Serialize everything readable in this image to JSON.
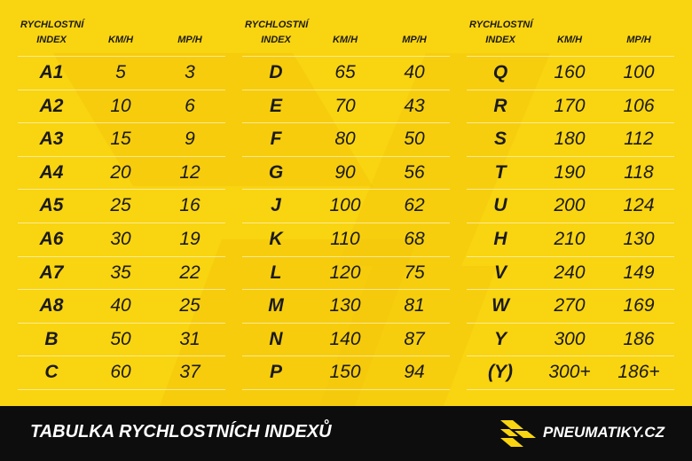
{
  "tables": [
    {
      "index_header": [
        "RYCHLOSTNÍ",
        "INDEX"
      ],
      "km_header": "KM/H",
      "mp_header": "MP/H",
      "rows": [
        [
          "A1",
          5,
          3
        ],
        [
          "A2",
          10,
          6
        ],
        [
          "A3",
          15,
          9
        ],
        [
          "A4",
          20,
          12
        ],
        [
          "A5",
          25,
          16
        ],
        [
          "A6",
          30,
          19
        ],
        [
          "A7",
          35,
          22
        ],
        [
          "A8",
          40,
          25
        ],
        [
          "B",
          50,
          31
        ],
        [
          "C",
          60,
          37
        ]
      ]
    },
    {
      "index_header": [
        "RYCHLOSTNÍ",
        "INDEX"
      ],
      "km_header": "KM/H",
      "mp_header": "MP/H",
      "rows": [
        [
          "D",
          65,
          40
        ],
        [
          "E",
          70,
          43
        ],
        [
          "F",
          80,
          50
        ],
        [
          "G",
          90,
          56
        ],
        [
          "J",
          100,
          62
        ],
        [
          "K",
          110,
          68
        ],
        [
          "L",
          120,
          75
        ],
        [
          "M",
          130,
          81
        ],
        [
          "N",
          140,
          87
        ],
        [
          "P",
          150,
          94
        ]
      ]
    },
    {
      "index_header": [
        "RYCHLOSTNÍ",
        "INDEX"
      ],
      "km_header": "KM/H",
      "mp_header": "MP/H",
      "rows": [
        [
          "Q",
          160,
          100
        ],
        [
          "R",
          170,
          106
        ],
        [
          "S",
          180,
          112
        ],
        [
          "T",
          190,
          118
        ],
        [
          "U",
          200,
          124
        ],
        [
          "H",
          210,
          130
        ],
        [
          "V",
          240,
          149
        ],
        [
          "W",
          270,
          169
        ],
        [
          "Y",
          300,
          186
        ],
        [
          "(Y)",
          "300+",
          "186+"
        ]
      ]
    }
  ],
  "footer": {
    "title": "TABULKA RYCHLOSTNÍCH INDEXŮ",
    "brand": "PNEUMATIKY.CZ"
  }
}
